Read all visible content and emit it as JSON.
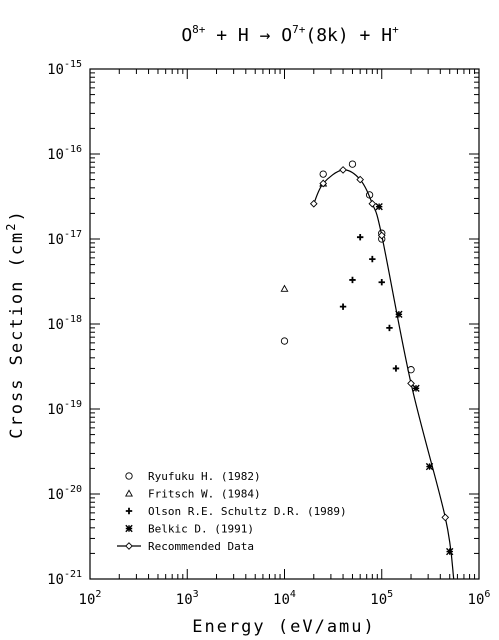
{
  "chart_data": {
    "type": "scatter",
    "title": {
      "base1": "O",
      "sup1": "8+",
      "mid1": " + H → O",
      "sup2": "7+",
      "mid2": "(8k) + H",
      "sup3": "+"
    },
    "xlabel": "Energy (eV/amu)",
    "ylabel": {
      "text": "Cross Section (cm",
      "sup": "2",
      "close": ")"
    },
    "x_scale": "log",
    "y_scale": "log",
    "xlim": [
      100,
      1000000
    ],
    "ylim": [
      1e-21,
      1e-15
    ],
    "x_ticks": [
      {
        "value": 100,
        "base": "10",
        "exp": "2"
      },
      {
        "value": 1000,
        "base": "10",
        "exp": "3"
      },
      {
        "value": 10000,
        "base": "10",
        "exp": "4"
      },
      {
        "value": 100000,
        "base": "10",
        "exp": "5"
      },
      {
        "value": 1000000,
        "base": "10",
        "exp": "6"
      }
    ],
    "y_ticks": [
      {
        "value": 1e-15,
        "base": "10",
        "exp": "-15"
      },
      {
        "value": 1e-16,
        "base": "10",
        "exp": "-16"
      },
      {
        "value": 1e-17,
        "base": "10",
        "exp": "-17"
      },
      {
        "value": 1e-18,
        "base": "10",
        "exp": "-18"
      },
      {
        "value": 1e-19,
        "base": "10",
        "exp": "-19"
      },
      {
        "value": 1e-20,
        "base": "10",
        "exp": "-20"
      },
      {
        "value": 1e-21,
        "base": "10",
        "exp": "-21"
      }
    ],
    "grid": false,
    "legend_position": "bottom-left",
    "series": [
      {
        "name": "Ryufuku H. (1982)",
        "marker": "circle",
        "points": [
          [
            10000,
            6.3e-19
          ],
          [
            25000,
            5.8e-17
          ],
          [
            50000,
            7.6e-17
          ],
          [
            75000,
            3.3e-17
          ],
          [
            100000,
            1.17e-17
          ],
          [
            100000,
            1e-17
          ],
          [
            200000,
            2.9e-19
          ]
        ]
      },
      {
        "name": "Fritsch W. (1984)",
        "marker": "triangle",
        "points": [
          [
            10000,
            2.6e-18
          ],
          [
            25000,
            4.5e-17
          ]
        ]
      },
      {
        "name": "Olson R.E. Schultz D.R. (1989)",
        "marker": "plus",
        "points": [
          [
            40000,
            1.6e-18
          ],
          [
            50000,
            3.3e-18
          ],
          [
            60000,
            1.05e-17
          ],
          [
            80000,
            5.8e-18
          ],
          [
            100000,
            3.1e-18
          ],
          [
            120000,
            9e-19
          ],
          [
            140000,
            3e-19
          ]
        ]
      },
      {
        "name": "Belkic D. (1991)",
        "marker": "star",
        "points": [
          [
            94000,
            2.4e-17
          ],
          [
            150000,
            1.3e-18
          ],
          [
            225000,
            1.75e-19
          ],
          [
            310000,
            2.1e-20
          ],
          [
            500000,
            2.1e-21
          ]
        ]
      },
      {
        "name": "Recommended Data",
        "marker": "diamond-line",
        "points": [
          [
            20000,
            2.6e-17
          ],
          [
            25000,
            4.5e-17
          ],
          [
            40000,
            6.5e-17
          ],
          [
            60000,
            5e-17
          ],
          [
            80000,
            2.6e-17
          ],
          [
            100000,
            1.1e-17
          ],
          [
            200000,
            2e-19
          ],
          [
            450000,
            5.3e-21
          ],
          [
            550000,
            1e-21
          ]
        ]
      }
    ]
  }
}
